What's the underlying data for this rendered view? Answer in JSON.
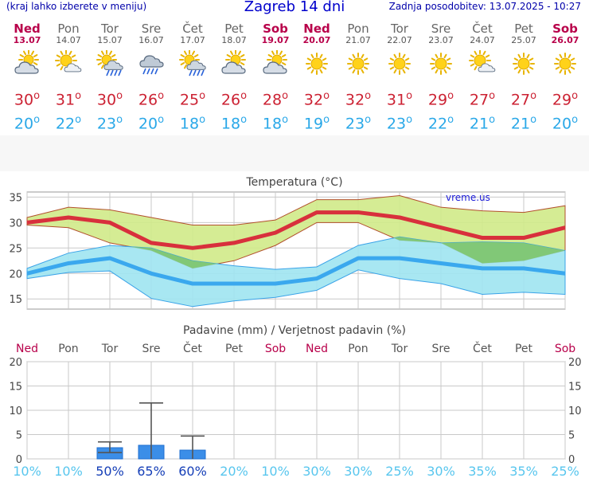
{
  "header": {
    "menu_hint": "(kraj lahko izberete v meniju)",
    "title": "Zagreb 14 dni",
    "updated": "Zadnja posodobitev: 13.07.2025 - 10:27"
  },
  "days": [
    {
      "name": "Ned",
      "date": "13.07",
      "weekend": true,
      "icon": "partly-cloudy-icon",
      "tmax": "30",
      "tmin": "20"
    },
    {
      "name": "Pon",
      "date": "14.07",
      "weekend": false,
      "icon": "sun-cloud-icon",
      "tmax": "31",
      "tmin": "22"
    },
    {
      "name": "Tor",
      "date": "15.07",
      "weekend": false,
      "icon": "sun-rain-icon",
      "tmax": "30",
      "tmin": "23"
    },
    {
      "name": "Sre",
      "date": "16.07",
      "weekend": false,
      "icon": "cloud-rain-icon",
      "tmax": "26",
      "tmin": "20"
    },
    {
      "name": "Čet",
      "date": "17.07",
      "weekend": false,
      "icon": "sun-rain-icon",
      "tmax": "25",
      "tmin": "18"
    },
    {
      "name": "Pet",
      "date": "18.07",
      "weekend": false,
      "icon": "partly-cloudy-icon",
      "tmax": "26",
      "tmin": "18"
    },
    {
      "name": "Sob",
      "date": "19.07",
      "weekend": true,
      "icon": "partly-cloudy-icon",
      "tmax": "28",
      "tmin": "18"
    },
    {
      "name": "Ned",
      "date": "20.07",
      "weekend": true,
      "icon": "sun-icon",
      "tmax": "32",
      "tmin": "19"
    },
    {
      "name": "Pon",
      "date": "21.07",
      "weekend": false,
      "icon": "sun-icon",
      "tmax": "32",
      "tmin": "23"
    },
    {
      "name": "Tor",
      "date": "22.07",
      "weekend": false,
      "icon": "sun-icon",
      "tmax": "31",
      "tmin": "23"
    },
    {
      "name": "Sre",
      "date": "23.07",
      "weekend": false,
      "icon": "sun-icon",
      "tmax": "29",
      "tmin": "22"
    },
    {
      "name": "Čet",
      "date": "24.07",
      "weekend": false,
      "icon": "sun-cloud-icon",
      "tmax": "27",
      "tmin": "21"
    },
    {
      "name": "Pet",
      "date": "25.07",
      "weekend": false,
      "icon": "sun-icon",
      "tmax": "27",
      "tmin": "21"
    },
    {
      "name": "Sob",
      "date": "26.07",
      "weekend": true,
      "icon": "sun-icon",
      "tmax": "29",
      "tmin": "20"
    }
  ],
  "chart_data": [
    {
      "type": "line",
      "title": "Temperatura (°C)",
      "watermark": "vreme.us",
      "ylim": [
        13,
        36
      ],
      "yticks": [
        15,
        20,
        25,
        30,
        35
      ],
      "grid": true,
      "categories": [
        "Ned",
        "Pon",
        "Tor",
        "Sre",
        "Čet",
        "Pet",
        "Sob",
        "Ned",
        "Pon",
        "Tor",
        "Sre",
        "Čet",
        "Pet",
        "Sob"
      ],
      "series": [
        {
          "role": "max",
          "values": [
            30,
            31,
            30,
            26,
            25,
            26,
            28,
            32,
            32,
            31,
            29,
            27,
            27,
            29
          ],
          "color": "#d8303c"
        },
        {
          "role": "min",
          "values": [
            20,
            22,
            23,
            20,
            18,
            18,
            18,
            19,
            23,
            23,
            22,
            21,
            21,
            20
          ],
          "color": "#3aa8ee"
        },
        {
          "role": "max_range_upper",
          "values": [
            31,
            33,
            32.5,
            31,
            29.5,
            29.5,
            30.5,
            34.5,
            34.5,
            35.3,
            33,
            32.3,
            32,
            33.3
          ],
          "color": "#d2ec8a"
        },
        {
          "role": "max_range_lower",
          "values": [
            29.5,
            29,
            26,
            24.5,
            21,
            22.5,
            25.5,
            30,
            30,
            26.5,
            26,
            22,
            22.5,
            24.5
          ],
          "color": "#d2ec8a"
        },
        {
          "role": "min_range_upper",
          "values": [
            21,
            24,
            25.5,
            25,
            22.5,
            21.5,
            20.8,
            21.3,
            25.5,
            27.2,
            26,
            26.2,
            26,
            24.5
          ],
          "color": "#a0e6f2"
        },
        {
          "role": "min_range_lower",
          "values": [
            19,
            20.2,
            20.5,
            15.1,
            13.5,
            14.6,
            15.3,
            16.7,
            20.7,
            19,
            18,
            15.9,
            16.3,
            15.9
          ],
          "color": "#a0e6f2"
        }
      ]
    },
    {
      "type": "bar",
      "title": "Padavine (mm) / Verjetnost padavin (%)",
      "ylim": [
        0,
        20
      ],
      "yticks": [
        0,
        5,
        10,
        15,
        20
      ],
      "grid": true,
      "categories": [
        "Ned",
        "Pon",
        "Tor",
        "Sre",
        "Čet",
        "Pet",
        "Sob",
        "Ned",
        "Pon",
        "Tor",
        "Sre",
        "Čet",
        "Pet",
        "Sob"
      ],
      "values": [
        0,
        0,
        2.3,
        2.8,
        1.8,
        0,
        0,
        0,
        0,
        0,
        0,
        0,
        0,
        0
      ],
      "error_high": [
        0,
        0,
        3.5,
        11.5,
        4.7,
        0,
        0,
        0,
        0,
        0,
        0,
        0,
        0,
        0
      ],
      "error_low": [
        0,
        0,
        1.3,
        0,
        0,
        0,
        0,
        0,
        0,
        0,
        0,
        0,
        0,
        0
      ],
      "probability": [
        "10%",
        "10%",
        "50%",
        "65%",
        "60%",
        "20%",
        "10%",
        "30%",
        "30%",
        "25%",
        "30%",
        "35%",
        "35%",
        "25%"
      ],
      "bar_color": "#3b8ee8"
    }
  ]
}
